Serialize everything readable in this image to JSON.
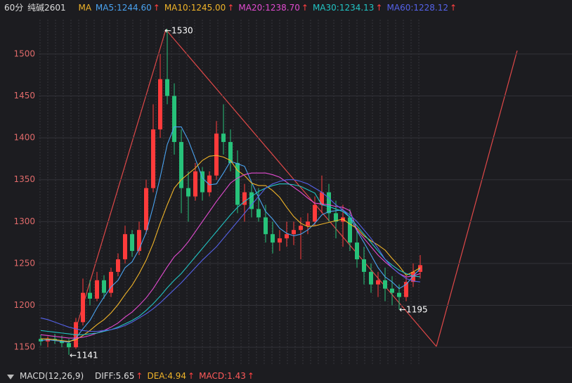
{
  "header": {
    "period": "60分",
    "symbol": "纯碱2601",
    "ma": "MA"
  },
  "chart_data": {
    "type": "candlestick",
    "ylim": [
      1130,
      1541
    ],
    "yticks": [
      1150,
      1200,
      1250,
      1300,
      1350,
      1400,
      1450,
      1500
    ],
    "grid": true,
    "up_color": "#ff3b3b",
    "down_color": "#27c27a",
    "open": [
      1160,
      1157,
      1160,
      1158,
      1155,
      1150,
      1180,
      1215,
      1208,
      1230,
      1215,
      1240,
      1255,
      1285,
      1265,
      1290,
      1340,
      1410,
      1470,
      1450,
      1395,
      1340,
      1330,
      1360,
      1335,
      1355,
      1405,
      1395,
      1370,
      1320,
      1335,
      1315,
      1305,
      1285,
      1275,
      1280,
      1285,
      1290,
      1295,
      1300,
      1320,
      1335,
      1310,
      1300,
      1305,
      1275,
      1255,
      1240,
      1225,
      1230,
      1220,
      1215,
      1210,
      1228,
      1240
    ],
    "high": [
      1165,
      1163,
      1166,
      1164,
      1160,
      1185,
      1232,
      1230,
      1240,
      1236,
      1245,
      1262,
      1295,
      1290,
      1300,
      1350,
      1440,
      1500,
      1530,
      1465,
      1410,
      1360,
      1370,
      1365,
      1360,
      1420,
      1440,
      1410,
      1385,
      1345,
      1345,
      1340,
      1320,
      1300,
      1290,
      1300,
      1300,
      1305,
      1310,
      1330,
      1355,
      1345,
      1325,
      1320,
      1315,
      1290,
      1270,
      1250,
      1240,
      1245,
      1235,
      1225,
      1235,
      1250,
      1260
    ],
    "low": [
      1152,
      1150,
      1154,
      1150,
      1141,
      1148,
      1176,
      1200,
      1205,
      1208,
      1210,
      1235,
      1250,
      1258,
      1260,
      1285,
      1335,
      1400,
      1440,
      1380,
      1310,
      1300,
      1325,
      1325,
      1330,
      1350,
      1380,
      1360,
      1310,
      1300,
      1305,
      1300,
      1275,
      1262,
      1265,
      1270,
      1272,
      1255,
      1285,
      1295,
      1310,
      1300,
      1280,
      1270,
      1265,
      1245,
      1225,
      1215,
      1210,
      1205,
      1200,
      1195,
      1205,
      1222,
      1232
    ],
    "close": [
      1157,
      1160,
      1158,
      1155,
      1150,
      1180,
      1215,
      1208,
      1230,
      1215,
      1240,
      1255,
      1285,
      1265,
      1290,
      1340,
      1410,
      1470,
      1450,
      1395,
      1340,
      1330,
      1360,
      1335,
      1355,
      1405,
      1395,
      1370,
      1320,
      1335,
      1315,
      1305,
      1285,
      1275,
      1280,
      1285,
      1290,
      1295,
      1300,
      1320,
      1335,
      1310,
      1300,
      1305,
      1275,
      1255,
      1240,
      1225,
      1230,
      1220,
      1215,
      1210,
      1228,
      1240,
      1248
    ],
    "series": [
      {
        "name": "MA5:1244.60",
        "color": "#4aa3f0",
        "trend_mark": "↑",
        "values": [
          1158,
          1159,
          1158,
          1157,
          1156,
          1161,
          1172,
          1182,
          1197,
          1210,
          1222,
          1230,
          1245,
          1252,
          1267,
          1287,
          1318,
          1353,
          1392,
          1413,
          1413,
          1397,
          1375,
          1352,
          1344,
          1345,
          1358,
          1372,
          1369,
          1366,
          1347,
          1329,
          1312,
          1303,
          1292,
          1286,
          1283,
          1285,
          1290,
          1298,
          1308,
          1312,
          1313,
          1314,
          1305,
          1289,
          1275,
          1260,
          1245,
          1234,
          1228,
          1220,
          1225,
          1235,
          1244
        ]
      },
      {
        "name": "MA10:1245.00",
        "color": "#f0b429",
        "trend_mark": "↑",
        "values": [
          1160,
          1160,
          1159,
          1158,
          1157,
          1159,
          1164,
          1170,
          1177,
          1183,
          1191,
          1201,
          1213,
          1224,
          1238,
          1254,
          1274,
          1298,
          1320,
          1340,
          1350,
          1357,
          1364,
          1373,
          1378,
          1379,
          1377,
          1373,
          1361,
          1355,
          1346,
          1343,
          1343,
          1337,
          1329,
          1317,
          1306,
          1298,
          1294,
          1295,
          1297,
          1299,
          1301,
          1303,
          1297,
          1292,
          1283,
          1277,
          1272,
          1266,
          1256,
          1247,
          1236,
          1240,
          1245
        ]
      },
      {
        "name": "MA20:1238.70",
        "color": "#e24bd0",
        "trend_mark": "↑",
        "values": [
          1165,
          1164,
          1163,
          1162,
          1161,
          1161,
          1162,
          1164,
          1167,
          1170,
          1174,
          1179,
          1186,
          1192,
          1200,
          1209,
          1220,
          1233,
          1246,
          1258,
          1266,
          1276,
          1288,
          1300,
          1312,
          1324,
          1335,
          1346,
          1352,
          1356,
          1358,
          1358,
          1358,
          1356,
          1353,
          1347,
          1341,
          1335,
          1328,
          1322,
          1321,
          1320,
          1318,
          1317,
          1313,
          1290,
          1280,
          1270,
          1260,
          1252,
          1245,
          1238,
          1234,
          1235,
          1238
        ]
      },
      {
        "name": "MA30:1234.13",
        "color": "#22c4c4",
        "trend_mark": "↑",
        "values": [
          1170,
          1169,
          1168,
          1167,
          1166,
          1165,
          1165,
          1166,
          1167,
          1169,
          1171,
          1174,
          1178,
          1182,
          1187,
          1194,
          1202,
          1211,
          1221,
          1230,
          1238,
          1248,
          1258,
          1268,
          1278,
          1288,
          1298,
          1308,
          1317,
          1324,
          1330,
          1336,
          1340,
          1343,
          1345,
          1345,
          1344,
          1342,
          1338,
          1334,
          1320,
          1318,
          1315,
          1312,
          1305,
          1295,
          1285,
          1275,
          1265,
          1255,
          1248,
          1242,
          1238,
          1235,
          1234
        ]
      },
      {
        "name": "MA60:1228.12",
        "color": "#5562e8",
        "trend_mark": "↑",
        "values": [
          1185,
          1183,
          1180,
          1177,
          1174,
          1172,
          1170,
          1169,
          1169,
          1170,
          1171,
          1173,
          1176,
          1180,
          1185,
          1190,
          1196,
          1203,
          1211,
          1219,
          1227,
          1236,
          1245,
          1254,
          1262,
          1270,
          1280,
          1290,
          1300,
          1310,
          1320,
          1330,
          1340,
          1345,
          1348,
          1350,
          1350,
          1348,
          1345,
          1340,
          1335,
          1328,
          1320,
          1314,
          1308,
          1300,
          1290,
          1280,
          1268,
          1255,
          1245,
          1238,
          1232,
          1229,
          1228
        ]
      }
    ],
    "annotations": [
      "←1530",
      "←1141",
      "←1195"
    ]
  },
  "macd": {
    "label": "MACD(12,26,9)",
    "items": [
      {
        "text": "DIFF:5.65",
        "color": "#dddddd",
        "trend_mark": "↑"
      },
      {
        "text": "DEA:4.94",
        "color": "#f0b429",
        "trend_mark": "↑"
      },
      {
        "text": "MACD:1.43",
        "color": "#ff5a5a",
        "trend_mark": "↑"
      }
    ]
  }
}
